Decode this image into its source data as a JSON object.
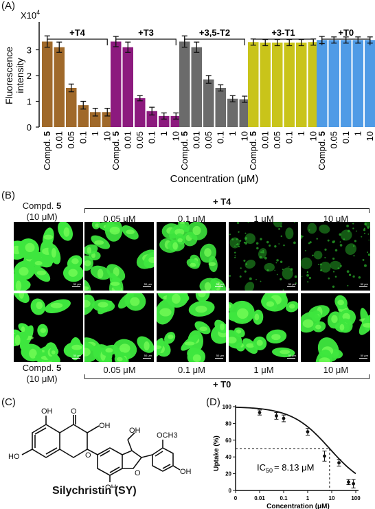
{
  "panels": {
    "A": "(A)",
    "B": "(B)",
    "C": "(C)",
    "D": "(D)"
  },
  "panel_a": {
    "ylabel_line1": "Fluorescence",
    "ylabel_line2": "intensity",
    "multiplier_base": "X10",
    "multiplier_exp": "4",
    "xlabel": "Concentration (μM)",
    "compound_prefix": "Compd.",
    "compound_num": "5",
    "y_ticks": [
      "0",
      "1",
      "2",
      "3"
    ],
    "groups": [
      {
        "label": "+T4",
        "color": "#a0692a",
        "categories": [
          "0.01",
          "0.05",
          "0.1",
          "1",
          "10"
        ],
        "values": [
          3.1,
          1.52,
          0.85,
          0.58,
          0.58
        ],
        "errors": [
          0.2,
          0.15,
          0.15,
          0.15,
          0.15
        ],
        "control": 3.32,
        "control_err": 0.22
      },
      {
        "label": "+T3",
        "color": "#8c1a7e",
        "categories": [
          "0.01",
          "0.05",
          "0.1",
          "1",
          "10"
        ],
        "values": [
          3.1,
          1.12,
          0.62,
          0.43,
          0.43
        ],
        "errors": [
          0.2,
          0.1,
          0.15,
          0.12,
          0.12
        ],
        "control": 3.32,
        "control_err": 0.2
      },
      {
        "label": "+3,5-T2",
        "color": "#6b6b6b",
        "categories": [
          "0.01",
          "0.05",
          "0.1",
          "1",
          "10"
        ],
        "values": [
          3.1,
          1.85,
          1.52,
          1.1,
          1.08
        ],
        "errors": [
          0.2,
          0.15,
          0.12,
          0.12,
          0.12
        ],
        "control": 3.32,
        "control_err": 0.22
      },
      {
        "label": "+3-T1",
        "color": "#c9c41a",
        "categories": [
          "0.01",
          "0.05",
          "0.1",
          "1",
          "10"
        ],
        "values": [
          3.28,
          3.28,
          3.28,
          3.28,
          3.3
        ],
        "errors": [
          0.12,
          0.12,
          0.12,
          0.12,
          0.12
        ],
        "control": 3.3,
        "control_err": 0.12
      },
      {
        "label": "+T0",
        "color": "#4f9be6",
        "categories": [
          "0.05",
          "0.1",
          "1",
          "10"
        ],
        "values": [
          3.38,
          3.38,
          3.38,
          3.38
        ],
        "errors": [
          0.12,
          0.12,
          0.12,
          0.12
        ],
        "control": 3.38,
        "control_err": 0.14
      }
    ]
  },
  "panel_b": {
    "compd_label": "Compd.",
    "compd_num": "5",
    "compd_conc": "(10 μM)",
    "row1_treatment": "+ T4",
    "row2_treatment": "+ T0",
    "concentrations": [
      "0.05 μM",
      "0.1 μM",
      "1 μM",
      "10 μM"
    ],
    "scale_text": "50 μm",
    "row1_density": [
      1.0,
      0.85,
      0.75,
      0.25,
      0.22
    ],
    "row2_density": [
      1.0,
      0.9,
      0.95,
      0.95,
      0.9
    ]
  },
  "panel_c": {
    "name": "Silychristin (SY)",
    "atoms": [
      "OH",
      "O",
      "OH",
      "OH",
      "HO",
      "O",
      "OCH3",
      "OH",
      "OH",
      "O"
    ]
  },
  "panel_d": {
    "ylabel": "Uptake (%)",
    "xlabel": "Concentration (μM)",
    "ic50_prefix": "IC",
    "ic50_sub": "50",
    "ic50_value": "= 8.13 μM",
    "y_ticks": [
      "0",
      "20",
      "40",
      "60",
      "80",
      "100"
    ],
    "x_ticks": [
      "0",
      "0.01",
      "0.1",
      "1",
      "10",
      "100"
    ]
  },
  "chart_data": [
    {
      "type": "bar",
      "ylabel": "Fluorescence intensity",
      "xlabel": "Concentration (μM)",
      "ylim": [
        0,
        4
      ],
      "unit_multiplier": "X10^4",
      "series": [
        {
          "name": "+T4",
          "categories": [
            "Compd. 5",
            "0.01",
            "0.05",
            "0.1",
            "1",
            "10"
          ],
          "values": [
            3.32,
            3.1,
            1.52,
            0.85,
            0.58,
            0.58
          ]
        },
        {
          "name": "+T3",
          "categories": [
            "Compd. 5",
            "0.01",
            "0.05",
            "0.1",
            "1",
            "10"
          ],
          "values": [
            3.32,
            3.1,
            1.12,
            0.62,
            0.43,
            0.43
          ]
        },
        {
          "name": "+3,5-T2",
          "categories": [
            "Compd. 5",
            "0.01",
            "0.05",
            "0.1",
            "1",
            "10"
          ],
          "values": [
            3.32,
            3.1,
            1.85,
            1.52,
            1.1,
            1.08
          ]
        },
        {
          "name": "+3-T1",
          "categories": [
            "Compd. 5",
            "0.01",
            "0.05",
            "0.1",
            "1",
            "10"
          ],
          "values": [
            3.3,
            3.28,
            3.28,
            3.28,
            3.28,
            3.3
          ]
        },
        {
          "name": "+T0",
          "categories": [
            "Compd. 5",
            "0.05",
            "0.1",
            "1",
            "10"
          ],
          "values": [
            3.38,
            3.38,
            3.38,
            3.38,
            3.38
          ]
        }
      ]
    },
    {
      "type": "scatter",
      "xlabel": "Concentration (μM)",
      "ylabel": "Uptake (%)",
      "xscale": "log",
      "ylim": [
        0,
        100
      ],
      "xlim": [
        0.001,
        100
      ],
      "x": [
        0.01,
        0.05,
        0.1,
        1,
        5,
        20,
        50,
        80
      ],
      "y": [
        93,
        89,
        86,
        70,
        41,
        33,
        10,
        8
      ],
      "errors": [
        3,
        4,
        4,
        4,
        6,
        4,
        3,
        5
      ],
      "fit": "sigmoidal",
      "ic50": 8.13
    }
  ]
}
